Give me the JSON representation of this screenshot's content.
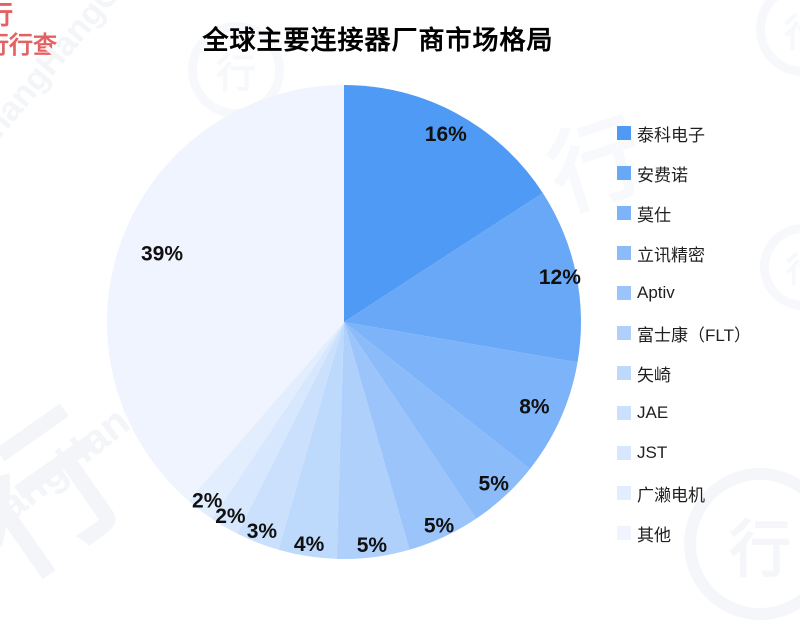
{
  "page": {
    "background": "#ffffff"
  },
  "chart_data": {
    "type": "pie",
    "title": "全球主要连接器厂商市场格局",
    "legend_position": "right",
    "start_angle": "12-oclock-clockwise",
    "series": [
      {
        "label": "泰科电子",
        "value": 16,
        "display": "16%",
        "color": "#4E9AF5"
      },
      {
        "label": "安费诺",
        "value": 12,
        "display": "12%",
        "color": "#69A8F7"
      },
      {
        "label": "莫仕",
        "value": 8,
        "display": "8%",
        "color": "#7DB3F8"
      },
      {
        "label": "立讯精密",
        "value": 5,
        "display": "5%",
        "color": "#8CBBF9"
      },
      {
        "label": "Aptiv",
        "value": 5,
        "display": "5%",
        "color": "#9AC4FA"
      },
      {
        "label": "富士康（FLT）",
        "value": 5,
        "display": "5%",
        "color": "#AED0FB"
      },
      {
        "label": "矢崎",
        "value": 4,
        "display": "4%",
        "color": "#BDD9FC"
      },
      {
        "label": "JAE",
        "value": 3,
        "display": "3%",
        "color": "#CBE0FC"
      },
      {
        "label": "JST",
        "value": 2,
        "display": "2%",
        "color": "#D7E7FD"
      },
      {
        "label": "广濑电机",
        "value": 2,
        "display": "2%",
        "color": "#E2EDFD"
      },
      {
        "label": "其他",
        "value": 39,
        "display": "39%",
        "color": "#EFF4FE"
      }
    ]
  },
  "watermark": {
    "logo_char": "行",
    "brand_cn": "行行查",
    "brand_en": "hangHangCha",
    "brand_en_fragment": "angHangC"
  }
}
